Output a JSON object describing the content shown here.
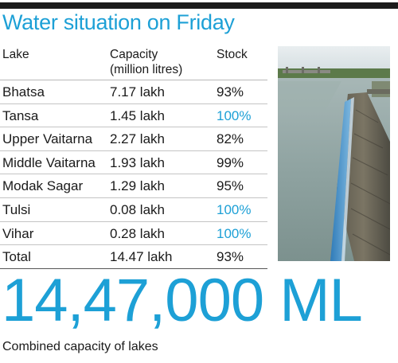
{
  "title": "Water situation on Friday",
  "table": {
    "headers": {
      "lake": "Lake",
      "capacity_line1": "Capacity",
      "capacity_line2": "(million litres)",
      "stock": "Stock"
    },
    "rows": [
      {
        "lake": "Bhatsa",
        "capacity": "7.17 lakh",
        "stock": "93%",
        "full": false
      },
      {
        "lake": "Tansa",
        "capacity": "1.45 lakh",
        "stock": "100%",
        "full": true
      },
      {
        "lake": "Upper Vaitarna",
        "capacity": "2.27 lakh",
        "stock": "82%",
        "full": false
      },
      {
        "lake": "Middle Vaitarna",
        "capacity": "1.93 lakh",
        "stock": "99%",
        "full": false
      },
      {
        "lake": "Modak Sagar",
        "capacity": "1.29 lakh",
        "stock": "95%",
        "full": false
      },
      {
        "lake": "Tulsi",
        "capacity": "0.08 lakh",
        "stock": "100%",
        "full": true
      },
      {
        "lake": "Vihar",
        "capacity": "0.28 lakh",
        "stock": "100%",
        "full": true
      },
      {
        "lake": "Total",
        "capacity": "14.47 lakh",
        "stock": "93%",
        "full": false
      }
    ]
  },
  "big_figure": "14,47,000 ML",
  "caption": "Combined capacity of lakes",
  "colors": {
    "accent": "#1da0d6",
    "text": "#1a1a1a",
    "rule": "#1b1b1b"
  }
}
